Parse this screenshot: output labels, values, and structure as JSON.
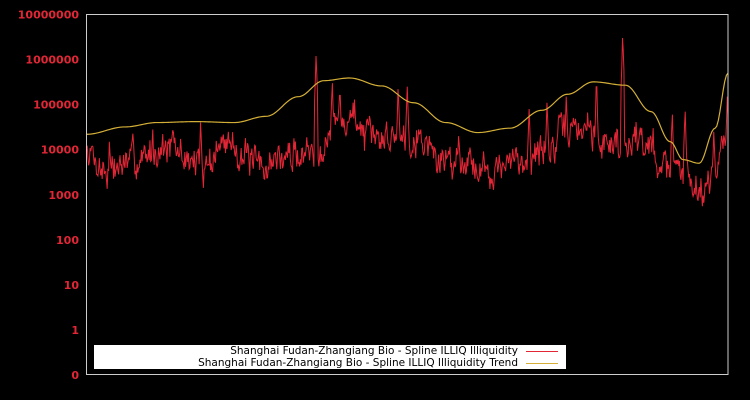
{
  "chart_data": {
    "type": "line",
    "title": "",
    "xlabel": "",
    "ylabel": "",
    "yscale": "symlog",
    "y_ticks": [
      "0",
      "1",
      "10",
      "100",
      "1000",
      "10000",
      "100000",
      "1000000",
      "10000000"
    ],
    "ylim": [
      0,
      10000000
    ],
    "grid": false,
    "legend_position": "lower center",
    "background": "#000000",
    "frame_color": "#cccccc",
    "tick_color": "#e32636",
    "series": [
      {
        "name": "Shanghai Fudan-Zhangiang Bio - Spline ILLIQ Illiquidity",
        "color": "#e32636",
        "kind": "noisy",
        "anchors_x_frac": [
          0.0,
          0.03,
          0.08,
          0.12,
          0.18,
          0.22,
          0.27,
          0.3,
          0.35,
          0.36,
          0.4,
          0.42,
          0.44,
          0.47,
          0.5,
          0.52,
          0.55,
          0.59,
          0.62,
          0.65,
          0.68,
          0.72,
          0.75,
          0.78,
          0.8,
          0.82,
          0.84,
          0.86,
          0.89,
          0.91,
          0.94,
          0.96,
          0.98,
          1.0
        ],
        "anchors_value": [
          10000,
          3500,
          6000,
          12000,
          4500,
          14000,
          4000,
          6500,
          9000,
          12000,
          45000,
          50000,
          16000,
          20000,
          20000,
          20000,
          6000,
          7000,
          3500,
          4000,
          6000,
          10000,
          25000,
          30000,
          15000,
          15000,
          18000,
          20000,
          6000,
          3500,
          3000,
          1200,
          5000,
          15000
        ],
        "spikes": [
          {
            "x_frac": 0.036,
            "value": 15000
          },
          {
            "x_frac": 0.103,
            "value": 28000
          },
          {
            "x_frac": 0.178,
            "value": 40000
          },
          {
            "x_frac": 0.358,
            "value": 1200000
          },
          {
            "x_frac": 0.383,
            "value": 300000
          },
          {
            "x_frac": 0.395,
            "value": 160000
          },
          {
            "x_frac": 0.418,
            "value": 130000
          },
          {
            "x_frac": 0.486,
            "value": 220000
          },
          {
            "x_frac": 0.5,
            "value": 250000
          },
          {
            "x_frac": 0.58,
            "value": 20000
          },
          {
            "x_frac": 0.69,
            "value": 80000
          },
          {
            "x_frac": 0.718,
            "value": 110000
          },
          {
            "x_frac": 0.748,
            "value": 150000
          },
          {
            "x_frac": 0.795,
            "value": 250000
          },
          {
            "x_frac": 0.836,
            "value": 3000000
          },
          {
            "x_frac": 0.883,
            "value": 30000
          },
          {
            "x_frac": 0.913,
            "value": 60000
          },
          {
            "x_frac": 0.933,
            "value": 70000
          },
          {
            "x_frac": 0.978,
            "value": 25000
          },
          {
            "x_frac": 0.999,
            "value": 150000
          }
        ],
        "noise_decades": 0.28,
        "points": 900,
        "seed": 7
      },
      {
        "name": "Shanghai Fudan-Zhangiang Bio - Spline ILLIQ Illiquidity Trend",
        "color": "#d4af37",
        "kind": "smooth",
        "anchors_x_frac": [
          0.0,
          0.06,
          0.11,
          0.17,
          0.23,
          0.28,
          0.33,
          0.37,
          0.41,
          0.46,
          0.51,
          0.56,
          0.61,
          0.66,
          0.71,
          0.75,
          0.79,
          0.84,
          0.88,
          0.91,
          0.93,
          0.955,
          0.98,
          1.0
        ],
        "anchors_value": [
          22000,
          32000,
          40000,
          42000,
          40000,
          55000,
          150000,
          340000,
          390000,
          260000,
          110000,
          40000,
          24000,
          30000,
          75000,
          170000,
          320000,
          270000,
          70000,
          15000,
          6000,
          5000,
          30000,
          500000
        ]
      }
    ]
  },
  "axes": {
    "ytick_labels": [
      "10000000",
      "1000000",
      "100000",
      "10000",
      "1000",
      "100",
      "10",
      "1",
      "0"
    ]
  },
  "legend": {
    "items": [
      {
        "label": "Shanghai Fudan-Zhangiang Bio - Spline ILLIQ Illiquidity",
        "color": "#e32636"
      },
      {
        "label": "Shanghai Fudan-Zhangiang Bio - Spline ILLIQ Illiquidity Trend",
        "color": "#d4af37"
      }
    ]
  }
}
